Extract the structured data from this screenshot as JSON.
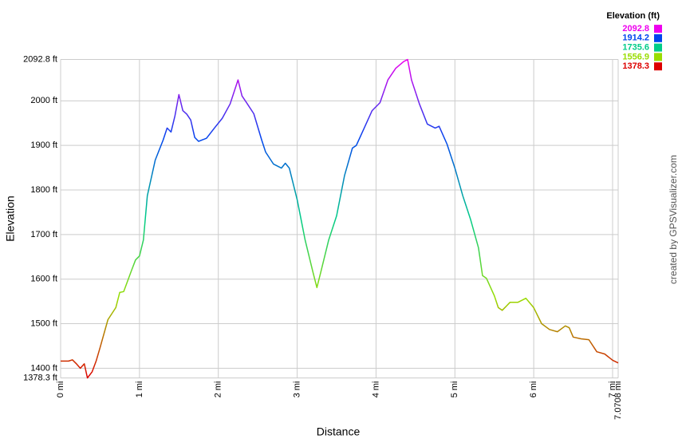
{
  "chart_data": {
    "type": "line",
    "x_label": "Distance",
    "y_label": "Elevation",
    "credit": "created by GPSVisualizer.com",
    "xlim": [
      0,
      7.0708
    ],
    "xticks": [
      {
        "value": 0,
        "label": "0 mi"
      },
      {
        "value": 1,
        "label": "1 mi"
      },
      {
        "value": 2,
        "label": "2 mi"
      },
      {
        "value": 3,
        "label": "3 mi"
      },
      {
        "value": 4,
        "label": "4 mi"
      },
      {
        "value": 5,
        "label": "5 mi"
      },
      {
        "value": 6,
        "label": "6 mi"
      },
      {
        "value": 7,
        "label": "7 mi"
      },
      {
        "value": 7.0708,
        "label": "7.0708 mi"
      }
    ],
    "ylim": [
      1378.3,
      2092.8
    ],
    "yticks": [
      {
        "value": 1378.3,
        "label": "1378.3 ft"
      },
      {
        "value": 1400,
        "label": "1400 ft"
      },
      {
        "value": 1500,
        "label": "1500 ft"
      },
      {
        "value": 1600,
        "label": "1600 ft"
      },
      {
        "value": 1700,
        "label": "1700 ft"
      },
      {
        "value": 1800,
        "label": "1800 ft"
      },
      {
        "value": 1900,
        "label": "1900 ft"
      },
      {
        "value": 2000,
        "label": "2000 ft"
      },
      {
        "value": 2092.8,
        "label": "2092.8 ft"
      }
    ],
    "grid": true,
    "legend": {
      "title": "Elevation (ft)",
      "levels": [
        2092.8,
        1914.2,
        1735.6,
        1556.9,
        1378.3
      ],
      "colors": [
        "#ee00ee",
        "#0044ee",
        "#00cc88",
        "#99dd00",
        "#dd0000"
      ]
    },
    "x": [
      0,
      0.1,
      0.15,
      0.2,
      0.25,
      0.3,
      0.34,
      0.4,
      0.45,
      0.5,
      0.6,
      0.7,
      0.75,
      0.8,
      0.9,
      0.95,
      1.0,
      1.05,
      1.1,
      1.2,
      1.3,
      1.35,
      1.4,
      1.45,
      1.5,
      1.55,
      1.6,
      1.65,
      1.7,
      1.75,
      1.85,
      1.95,
      2.05,
      2.15,
      2.25,
      2.3,
      2.35,
      2.45,
      2.55,
      2.6,
      2.7,
      2.8,
      2.85,
      2.9,
      3.0,
      3.1,
      3.2,
      3.25,
      3.3,
      3.4,
      3.5,
      3.6,
      3.7,
      3.75,
      3.85,
      3.95,
      4.05,
      4.15,
      4.25,
      4.35,
      4.4,
      4.45,
      4.55,
      4.65,
      4.75,
      4.8,
      4.9,
      5.0,
      5.1,
      5.2,
      5.3,
      5.35,
      5.4,
      5.5,
      5.55,
      5.6,
      5.7,
      5.8,
      5.9,
      6.0,
      6.1,
      6.2,
      6.3,
      6.4,
      6.45,
      6.5,
      6.6,
      6.7,
      6.8,
      6.9,
      7.0,
      7.0708
    ],
    "values": [
      1416,
      1416,
      1419,
      1410,
      1400,
      1410,
      1378.3,
      1392,
      1416,
      1446,
      1509,
      1536,
      1570,
      1572,
      1620,
      1643,
      1652,
      1688,
      1787,
      1867,
      1912,
      1939,
      1930,
      1966,
      2014,
      1978,
      1970,
      1957,
      1918,
      1909,
      1916,
      1939,
      1961,
      1993,
      2047,
      2011,
      1998,
      1971,
      1912,
      1885,
      1858,
      1849,
      1860,
      1849,
      1778,
      1688,
      1616,
      1581,
      1616,
      1688,
      1742,
      1832,
      1894,
      1900,
      1939,
      1978,
      1996,
      2047,
      2073,
      2088,
      2092.8,
      2047,
      1993,
      1948,
      1939,
      1943,
      1903,
      1849,
      1787,
      1733,
      1670,
      1608,
      1602,
      1563,
      1536,
      1530,
      1548,
      1548,
      1557,
      1536,
      1500,
      1487,
      1482,
      1495,
      1491,
      1470,
      1466,
      1464,
      1437,
      1432,
      1418,
      1412
    ]
  }
}
